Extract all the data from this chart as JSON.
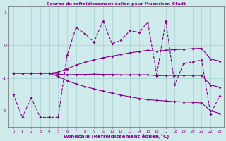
{
  "title": "Courbe du refroidissement éolien pour Muenchen-Stadt",
  "xlabel": "Windchill (Refroidissement éolien,°C)",
  "bg_color": "#ceeaea",
  "line_color": "#880088",
  "x": [
    0,
    1,
    2,
    3,
    4,
    5,
    6,
    7,
    8,
    9,
    10,
    11,
    12,
    13,
    14,
    15,
    16,
    17,
    18,
    19,
    20,
    21,
    22,
    23
  ],
  "y_main": [
    -1.5,
    -2.2,
    -1.6,
    -2.2,
    -2.2,
    -2.2,
    -0.3,
    0.55,
    0.35,
    0.1,
    0.75,
    0.05,
    0.15,
    0.45,
    0.4,
    0.7,
    -0.9,
    0.75,
    -1.2,
    -0.55,
    -0.5,
    -0.45,
    -2.1,
    -1.55
  ],
  "y_upper": [
    -0.85,
    -0.85,
    -0.85,
    -0.85,
    -0.85,
    -0.82,
    -0.72,
    -0.6,
    -0.52,
    -0.44,
    -0.38,
    -0.33,
    -0.28,
    -0.23,
    -0.19,
    -0.15,
    -0.18,
    -0.15,
    -0.13,
    -0.12,
    -0.1,
    -0.09,
    -0.42,
    -0.48
  ],
  "y_lower": [
    -0.85,
    -0.85,
    -0.85,
    -0.85,
    -0.85,
    -0.95,
    -1.08,
    -1.18,
    -1.26,
    -1.33,
    -1.4,
    -1.46,
    -1.52,
    -1.57,
    -1.62,
    -1.66,
    -1.68,
    -1.7,
    -1.72,
    -1.73,
    -1.74,
    -1.76,
    -2.0,
    -2.08
  ],
  "y_mid": [
    -0.85,
    -0.85,
    -0.85,
    -0.85,
    -0.85,
    -0.88,
    -0.9,
    -0.89,
    -0.89,
    -0.88,
    -0.89,
    -0.89,
    -0.9,
    -0.9,
    -0.9,
    -0.9,
    -0.93,
    -0.92,
    -0.92,
    -0.92,
    -0.92,
    -0.92,
    -1.21,
    -1.28
  ],
  "ylim": [
    -2.5,
    1.2
  ],
  "xlim": [
    -0.5,
    23.5
  ],
  "yticks": [
    -2,
    -1,
    0,
    1
  ],
  "xticks": [
    0,
    1,
    2,
    3,
    4,
    5,
    6,
    7,
    8,
    9,
    10,
    11,
    12,
    13,
    14,
    15,
    16,
    17,
    18,
    19,
    20,
    21,
    22,
    23
  ]
}
